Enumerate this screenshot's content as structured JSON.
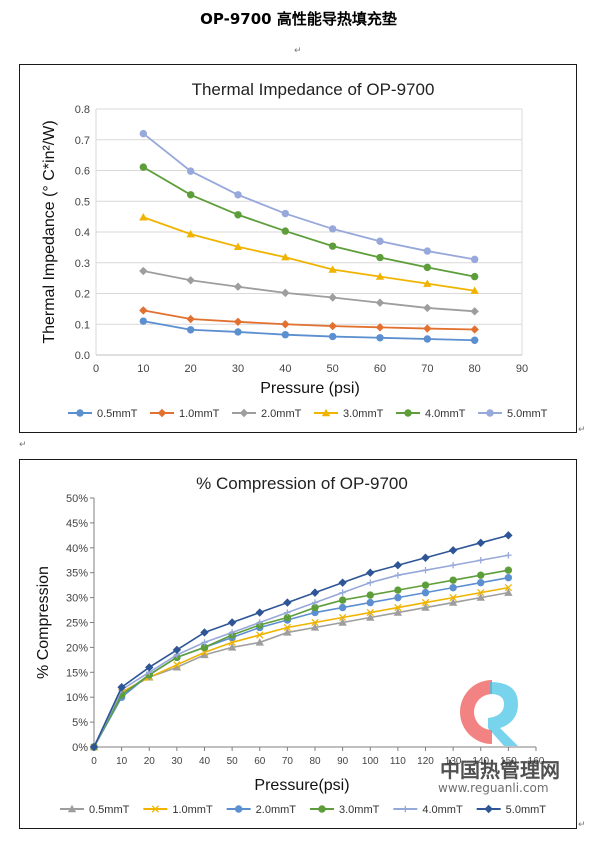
{
  "page": {
    "title": "OP-9700  高性能导热填充垫",
    "mark_symbol": "↵"
  },
  "watermark": {
    "brand": "中国热管理网",
    "url": "www.reguanli.com"
  },
  "chart_data": [
    {
      "type": "line",
      "title": "Thermal Impedance of OP-9700",
      "xlabel": "Pressure (psi)",
      "ylabel": "Thermal Impedance (° C*in²/W)",
      "xlim": [
        0,
        90
      ],
      "ylim": [
        0,
        0.8
      ],
      "xticks": [
        0,
        10,
        20,
        30,
        40,
        50,
        60,
        70,
        80,
        90
      ],
      "yticks": [
        0,
        0.1,
        0.2,
        0.3,
        0.4,
        0.5,
        0.6,
        0.7,
        0.8
      ],
      "xtick_labels": [
        "0",
        "10",
        "20",
        "30",
        "40",
        "50",
        "60",
        "70",
        "80",
        "90"
      ],
      "ytick_labels": [
        "0.0",
        "0.1",
        "0.2",
        "0.3",
        "0.4",
        "0.5",
        "0.6",
        "0.7",
        "0.8"
      ],
      "grid": true,
      "legend_position": "bottom",
      "x": [
        10,
        20,
        30,
        40,
        50,
        60,
        70,
        80
      ],
      "series": [
        {
          "name": "0.5mmT",
          "color": "#5b8fd0",
          "marker": "circle",
          "values": [
            0.11,
            0.082,
            0.075,
            0.066,
            0.06,
            0.056,
            0.052,
            0.048
          ]
        },
        {
          "name": "1.0mmT",
          "color": "#e2702f",
          "marker": "diamond",
          "values": [
            0.145,
            0.117,
            0.108,
            0.1,
            0.094,
            0.09,
            0.086,
            0.083
          ]
        },
        {
          "name": "2.0mmT",
          "color": "#9e9e9e",
          "marker": "diamond",
          "values": [
            0.273,
            0.243,
            0.222,
            0.202,
            0.187,
            0.17,
            0.153,
            0.142
          ]
        },
        {
          "name": "3.0mmT",
          "color": "#f0b400",
          "marker": "triangle",
          "values": [
            0.448,
            0.393,
            0.352,
            0.318,
            0.278,
            0.255,
            0.232,
            0.209
          ]
        },
        {
          "name": "4.0mmT",
          "color": "#5e9e3a",
          "marker": "circle",
          "values": [
            0.611,
            0.521,
            0.456,
            0.403,
            0.354,
            0.317,
            0.285,
            0.255
          ]
        },
        {
          "name": "5.0mmT",
          "color": "#97a8da",
          "marker": "circle",
          "values": [
            0.72,
            0.598,
            0.521,
            0.46,
            0.41,
            0.37,
            0.338,
            0.311
          ]
        }
      ]
    },
    {
      "type": "line",
      "title": "% Compression of OP-9700",
      "xlabel": "Pressure(psi)",
      "ylabel": "% Compression",
      "xlim": [
        0,
        160
      ],
      "ylim": [
        0,
        50
      ],
      "xticks": [
        0,
        10,
        20,
        30,
        40,
        50,
        60,
        70,
        80,
        90,
        100,
        110,
        120,
        130,
        140,
        150,
        160
      ],
      "yticks": [
        0,
        5,
        10,
        15,
        20,
        25,
        30,
        35,
        40,
        45,
        50
      ],
      "xtick_labels": [
        "0",
        "10",
        "20",
        "30",
        "40",
        "50",
        "60",
        "70",
        "80",
        "90",
        "100",
        "110",
        "120",
        "130",
        "140",
        "150",
        "160"
      ],
      "ytick_labels": [
        "0%",
        "5%",
        "10%",
        "15%",
        "20%",
        "25%",
        "30%",
        "35%",
        "40%",
        "45%",
        "50%"
      ],
      "grid": false,
      "legend_position": "bottom",
      "x": [
        0,
        10,
        20,
        30,
        40,
        50,
        60,
        70,
        80,
        90,
        100,
        110,
        120,
        130,
        140,
        150
      ],
      "series": [
        {
          "name": "0.5mmT",
          "color": "#9e9e9e",
          "marker": "triangle",
          "values": [
            0,
            11,
            14,
            16,
            18.5,
            20,
            21,
            23,
            24,
            25,
            26,
            27,
            28,
            29,
            30,
            31
          ]
        },
        {
          "name": "1.0mmT",
          "color": "#f0b400",
          "marker": "x",
          "values": [
            0,
            11,
            14,
            16.5,
            19,
            21,
            22.5,
            24,
            25,
            26,
            27,
            28,
            29,
            30,
            31,
            32
          ]
        },
        {
          "name": "2.0mmT",
          "color": "#5b8fd0",
          "marker": "circle",
          "values": [
            0,
            10,
            14.5,
            18,
            20,
            22,
            24,
            25.5,
            27,
            28,
            29,
            30,
            31,
            32,
            33,
            34
          ]
        },
        {
          "name": "3.0mmT",
          "color": "#5e9e3a",
          "marker": "circle",
          "values": [
            0,
            10.5,
            14.5,
            18,
            20,
            22.5,
            24.5,
            26,
            28,
            29.5,
            30.5,
            31.5,
            32.5,
            33.5,
            34.5,
            35.5
          ]
        },
        {
          "name": "4.0mmT",
          "color": "#97a8da",
          "marker": "plus",
          "values": [
            0,
            11.5,
            15,
            18.5,
            21,
            23,
            25,
            27,
            29,
            31,
            33,
            34.5,
            35.5,
            36.5,
            37.5,
            38.5
          ]
        },
        {
          "name": "5.0mmT",
          "color": "#2e5596",
          "marker": "diamond",
          "values": [
            0,
            12,
            16,
            19.5,
            23,
            25,
            27,
            29,
            31,
            33,
            35,
            36.5,
            38,
            39.5,
            41,
            42.5
          ]
        }
      ]
    }
  ]
}
